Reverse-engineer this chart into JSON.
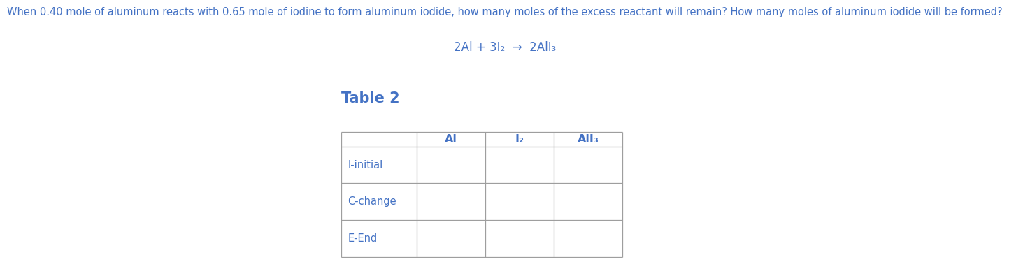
{
  "question_text": "When 0.40 mole of aluminum reacts with 0.65 mole of iodine to form aluminum iodide, how many moles of the excess reactant will remain? How many moles of aluminum iodide will be formed?",
  "equation_text": "2Al + 3I₂  →  2AlI₃",
  "table_title": "Table 2",
  "col_headers": [
    "",
    "Al",
    "I₂",
    "AlI₃"
  ],
  "row_labels": [
    "I-initial",
    "C-change",
    "E-End"
  ],
  "text_color": "#4472C4",
  "border_color": "#9E9E9E",
  "question_fontsize": 10.5,
  "equation_fontsize": 12,
  "table_title_fontsize": 15,
  "col_header_fontsize": 11.5,
  "row_label_fontsize": 10.5,
  "fig_width": 12.0,
  "fig_height": 3.77
}
